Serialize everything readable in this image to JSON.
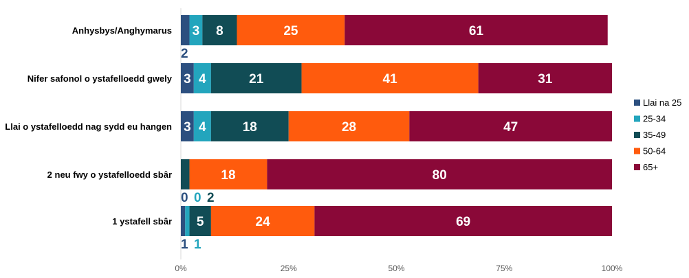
{
  "chart_data": {
    "type": "bar",
    "orientation": "horizontal",
    "stacked": true,
    "categories": [
      "Anhysbys/Anghymarus",
      "Nifer safonol o ystafelloedd gwely",
      "Llai o ystafelloedd nag sydd eu hangen",
      "2 neu fwy o ystafelloedd sbâr",
      "1 ystafell sbâr"
    ],
    "series": [
      {
        "name": "Llai na 25",
        "color": "#2c4f7f",
        "values": [
          2,
          3,
          3,
          0,
          1
        ]
      },
      {
        "name": "25-34",
        "color": "#23a5bd",
        "values": [
          3,
          4,
          4,
          0,
          1
        ]
      },
      {
        "name": "35-49",
        "color": "#114c55",
        "values": [
          8,
          21,
          18,
          2,
          5
        ]
      },
      {
        "name": "50-64",
        "color": "#ff5b0d",
        "values": [
          25,
          41,
          28,
          18,
          24
        ]
      },
      {
        "name": "65+",
        "color": "#8a0838",
        "values": [
          61,
          31,
          47,
          80,
          69
        ]
      }
    ],
    "xlim": [
      0,
      100
    ],
    "xticks": [
      "0%",
      "25%",
      "50%",
      "75%",
      "100%"
    ],
    "legend_position": "right",
    "data_labels": true,
    "grid": false
  }
}
